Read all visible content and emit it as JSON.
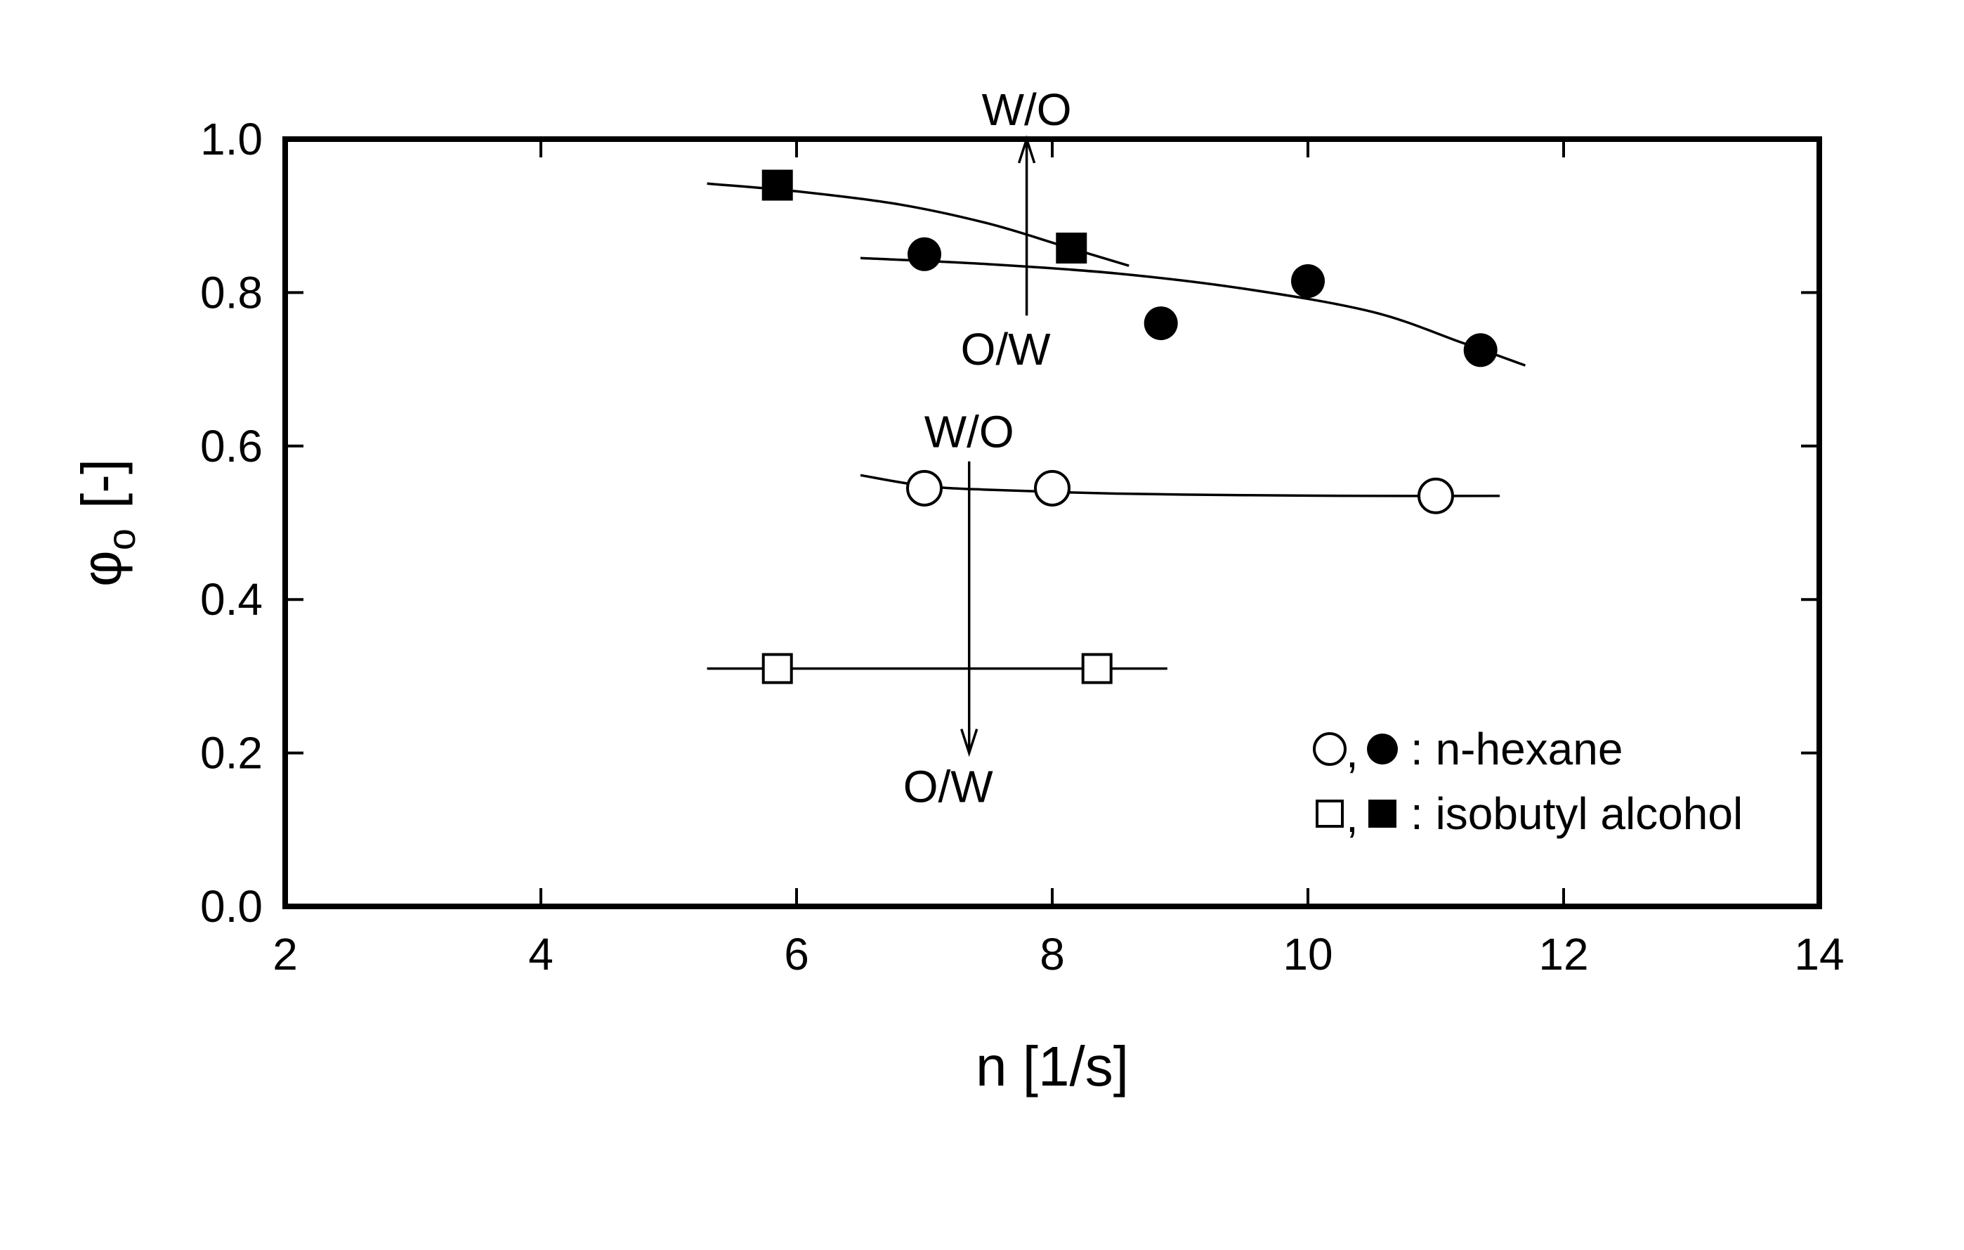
{
  "chart_data": {
    "type": "scatter",
    "xlabel": "n  [1/s]",
    "ylabel": {
      "symbol": "φ",
      "subscript": "o",
      "unit": "[-]"
    },
    "xlim": [
      2,
      14
    ],
    "ylim": [
      0.0,
      1.0
    ],
    "x_ticks": [
      2,
      4,
      6,
      8,
      10,
      12,
      14
    ],
    "x_tick_labels": [
      "2",
      "4",
      "6",
      "8",
      "10",
      "12",
      "14"
    ],
    "y_ticks": [
      0.0,
      0.2,
      0.4,
      0.6,
      0.8,
      1.0
    ],
    "y_tick_labels": [
      "0.0",
      "0.2",
      "0.4",
      "0.6",
      "0.8",
      "1.0"
    ],
    "grid": false,
    "series": [
      {
        "marker": "filled-circle",
        "points": [
          [
            7.0,
            0.85
          ],
          [
            8.85,
            0.76
          ],
          [
            10.0,
            0.815
          ],
          [
            11.35,
            0.725
          ]
        ],
        "fit_curve": [
          [
            6.5,
            0.845
          ],
          [
            7.5,
            0.837
          ],
          [
            8.5,
            0.825
          ],
          [
            9.5,
            0.805
          ],
          [
            10.5,
            0.775
          ],
          [
            11.2,
            0.735
          ],
          [
            11.7,
            0.705
          ]
        ]
      },
      {
        "marker": "filled-square",
        "points": [
          [
            5.85,
            0.94
          ],
          [
            8.15,
            0.858
          ]
        ],
        "fit_curve": [
          [
            5.3,
            0.942
          ],
          [
            6.0,
            0.932
          ],
          [
            6.8,
            0.915
          ],
          [
            7.5,
            0.89
          ],
          [
            8.1,
            0.86
          ],
          [
            8.6,
            0.835
          ]
        ]
      },
      {
        "marker": "open-circle",
        "points": [
          [
            7.0,
            0.545
          ],
          [
            8.0,
            0.545
          ],
          [
            11.0,
            0.535
          ]
        ],
        "fit_curve": [
          [
            6.5,
            0.562
          ],
          [
            7.0,
            0.548
          ],
          [
            7.5,
            0.543
          ],
          [
            8.5,
            0.538
          ],
          [
            9.5,
            0.536
          ],
          [
            10.5,
            0.535
          ],
          [
            11.5,
            0.535
          ]
        ]
      },
      {
        "marker": "open-square",
        "points": [
          [
            5.85,
            0.31
          ],
          [
            8.35,
            0.31
          ]
        ],
        "fit_curve": [
          [
            5.3,
            0.31
          ],
          [
            8.9,
            0.31
          ]
        ]
      }
    ],
    "transitions": [
      {
        "x": 7.8,
        "y_from": 0.77,
        "y_to": 1.0,
        "label_top": "W/O",
        "label_bottom": "O/W"
      },
      {
        "x": 7.35,
        "y_from": 0.58,
        "y_to": 0.2,
        "label_top": "W/O",
        "label_bottom": "O/W"
      }
    ],
    "legend": {
      "position": "bottom-right",
      "entries": [
        {
          "text": ": n-hexane",
          "markers": [
            "open-circle",
            "filled-circle"
          ]
        },
        {
          "text": ": isobutyl alcohol",
          "markers": [
            "open-square",
            "filled-square"
          ]
        }
      ]
    }
  }
}
